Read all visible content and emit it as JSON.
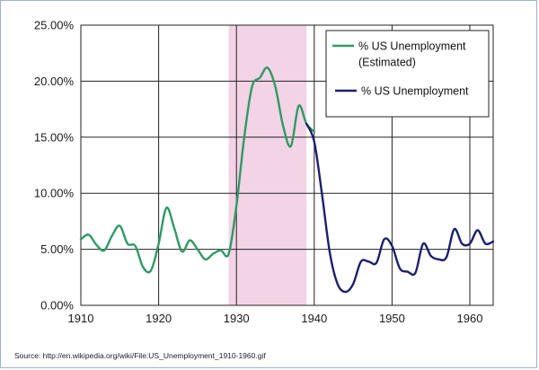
{
  "chart_data": {
    "type": "line",
    "xlim": [
      1910,
      1963
    ],
    "ylim": [
      0,
      25
    ],
    "x_ticks": [
      1910,
      1920,
      1930,
      1940,
      1950,
      1960
    ],
    "x_tick_labels": [
      "1910",
      "1920",
      "1930",
      "1940",
      "1950",
      "1960"
    ],
    "y_ticks": [
      0,
      5,
      10,
      15,
      20,
      25
    ],
    "y_tick_labels": [
      "0.00%",
      "5.00%",
      "10.00%",
      "15.00%",
      "20.00%",
      "25.00%"
    ],
    "grid": true,
    "legend_position": "top-right",
    "shaded_region": {
      "x_start": 1929,
      "x_end": 1939,
      "color": "#f3d3e6"
    },
    "series": [
      {
        "name": "% US Unemployment (Estimated)",
        "legend_lines": [
          "% US Unemployment",
          "(Estimated)"
        ],
        "color": "#2e9a64",
        "points": [
          [
            1910,
            5.9
          ],
          [
            1911,
            6.3
          ],
          [
            1912,
            5.4
          ],
          [
            1913,
            4.9
          ],
          [
            1914,
            6.2
          ],
          [
            1915,
            7.1
          ],
          [
            1916,
            5.5
          ],
          [
            1917,
            5.3
          ],
          [
            1918,
            3.4
          ],
          [
            1919,
            3.1
          ],
          [
            1920,
            5.5
          ],
          [
            1921,
            8.7
          ],
          [
            1922,
            6.9
          ],
          [
            1923,
            4.8
          ],
          [
            1924,
            5.8
          ],
          [
            1925,
            5.0
          ],
          [
            1926,
            4.1
          ],
          [
            1927,
            4.6
          ],
          [
            1928,
            4.9
          ],
          [
            1929,
            4.6
          ],
          [
            1930,
            8.9
          ],
          [
            1931,
            15.0
          ],
          [
            1932,
            19.5
          ],
          [
            1933,
            20.3
          ],
          [
            1934,
            21.2
          ],
          [
            1935,
            19.5
          ],
          [
            1936,
            16.0
          ],
          [
            1937,
            14.2
          ],
          [
            1938,
            17.8
          ],
          [
            1939,
            16.2
          ],
          [
            1940,
            15.5
          ]
        ]
      },
      {
        "name": "% US Unemployment",
        "legend_lines": [
          "% US Unemployment"
        ],
        "color": "#1c1f6e",
        "points": [
          [
            1939,
            16.2
          ],
          [
            1940,
            14.6
          ],
          [
            1941,
            9.9
          ],
          [
            1942,
            4.7
          ],
          [
            1943,
            1.9
          ],
          [
            1944,
            1.2
          ],
          [
            1945,
            1.9
          ],
          [
            1946,
            3.9
          ],
          [
            1947,
            3.9
          ],
          [
            1948,
            3.8
          ],
          [
            1949,
            5.9
          ],
          [
            1950,
            5.3
          ],
          [
            1951,
            3.3
          ],
          [
            1952,
            3.0
          ],
          [
            1953,
            2.9
          ],
          [
            1954,
            5.5
          ],
          [
            1955,
            4.4
          ],
          [
            1956,
            4.1
          ],
          [
            1957,
            4.3
          ],
          [
            1958,
            6.8
          ],
          [
            1959,
            5.5
          ],
          [
            1960,
            5.5
          ],
          [
            1961,
            6.7
          ],
          [
            1962,
            5.5
          ],
          [
            1963,
            5.7
          ]
        ]
      }
    ]
  },
  "source_note": "Source: http://en.wikipedia.org/wiki/File:US_Unemployment_1910-1960.gif"
}
